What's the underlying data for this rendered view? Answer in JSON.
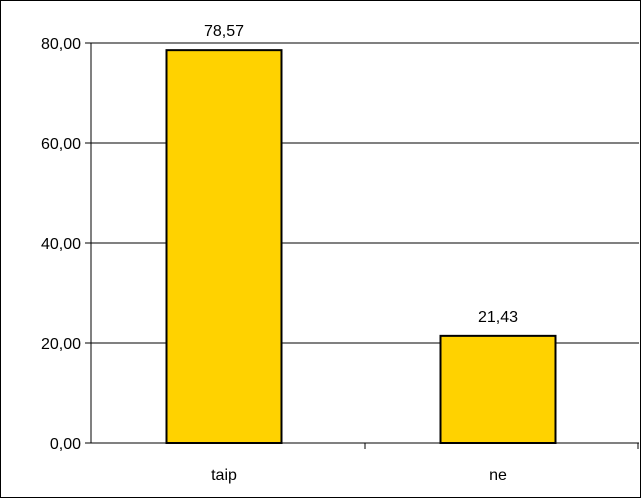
{
  "chart_data": {
    "type": "bar",
    "categories": [
      "taip",
      "ne"
    ],
    "values": [
      78.57,
      21.43
    ],
    "value_labels": [
      "78,57",
      "21,43"
    ],
    "ylim": [
      0,
      80
    ],
    "yticks": [
      0,
      20,
      40,
      60,
      80
    ],
    "ytick_labels": [
      "0,00",
      "20,00",
      "40,00",
      "60,00",
      "80,00"
    ],
    "grid": true,
    "legend": "none",
    "colors": {
      "bar_fill": "#FFD200",
      "bar_stroke": "#000000",
      "grid": "#000000",
      "axis": "#000000"
    }
  }
}
